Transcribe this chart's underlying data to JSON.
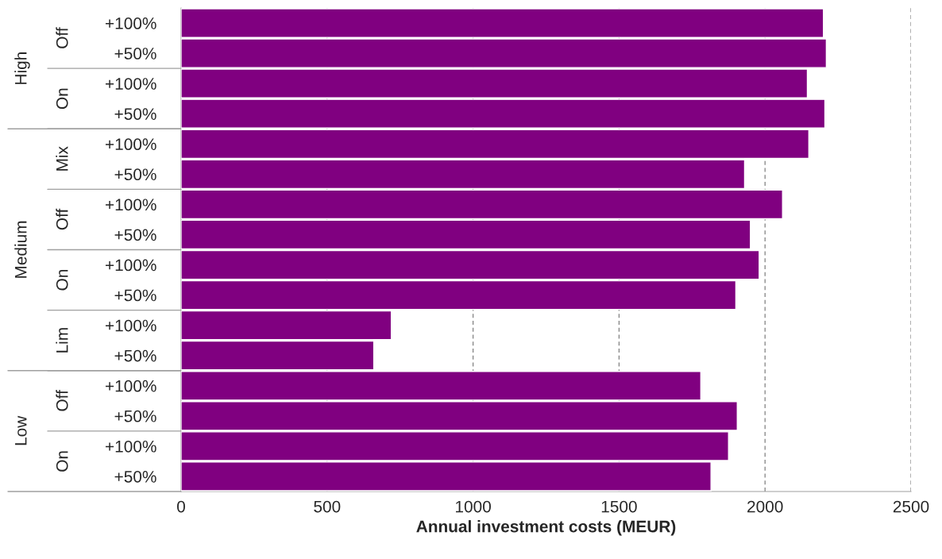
{
  "chart_data": {
    "type": "bar",
    "orientation": "horizontal",
    "xlabel": "Annual investment costs (MEUR)",
    "categories": [
      "+100%",
      "+50%",
      "+100%",
      "+50%",
      "+100%",
      "+50%",
      "+100%",
      "+50%",
      "+100%",
      "+50%",
      "+100%",
      "+50%",
      "+100%",
      "+50%",
      "+100%",
      "+50%"
    ],
    "values": [
      2200,
      2210,
      2145,
      2205,
      2150,
      1930,
      2060,
      1950,
      1980,
      1900,
      720,
      660,
      1780,
      1905,
      1875,
      1815
    ],
    "color": "#800080",
    "annotations": [
      "Off",
      "On",
      "Mix",
      "Off",
      "On",
      "Lim",
      "Off",
      "On",
      "High",
      "Medium",
      "Low"
    ],
    "xlim": [
      0,
      2500
    ],
    "xticks": [
      0,
      500,
      1000,
      1500,
      2000,
      2500
    ],
    "grid": "x"
  }
}
